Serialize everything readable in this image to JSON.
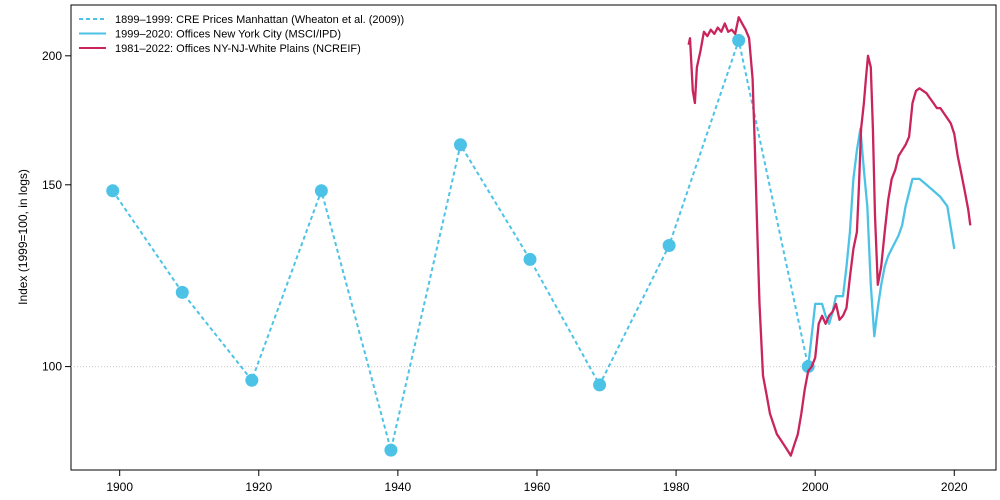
{
  "chart_data": {
    "type": "line",
    "title": "",
    "xlabel": "",
    "ylabel": "Index (1999=100, in logs)",
    "y_scale": "log",
    "xlim": [
      1893,
      2026
    ],
    "ylim": [
      79.4,
      224
    ],
    "x_ticks": [
      1900,
      1920,
      1940,
      1960,
      1980,
      2000,
      2020
    ],
    "y_ticks": [
      100,
      150,
      200
    ],
    "reference_line": 100,
    "legend_position": "top-left",
    "grid": false,
    "series": [
      {
        "name": "1899–1999: CRE Prices Manhattan (Wheaton et al. (2009))",
        "color": "#4CC3E6",
        "style": "dotted",
        "markers": true,
        "x": [
          1899,
          1909,
          1919,
          1929,
          1939,
          1949,
          1959,
          1969,
          1979,
          1989,
          1999
        ],
        "y": [
          148,
          118,
          97,
          148,
          83,
          164,
          127,
          96,
          131,
          207,
          100
        ]
      },
      {
        "name": "1999–2020: Offices New York City (MSCI/IPD)",
        "color": "#4CC3E6",
        "style": "solid",
        "markers": false,
        "x": [
          1999,
          2000,
          2001,
          2001.5,
          2002,
          2002.5,
          2003,
          2003.5,
          2004,
          2004.5,
          2005,
          2005.5,
          2006,
          2006.5,
          2007,
          2007.5,
          2008,
          2008.5,
          2009,
          2009.5,
          2010,
          2010.5,
          2011,
          2011.5,
          2012,
          2012.5,
          2013,
          2014,
          2015,
          2016,
          2017,
          2018,
          2019,
          2020
        ],
        "y": [
          100,
          115,
          115,
          112,
          110,
          113,
          117,
          117,
          117,
          125,
          135,
          152,
          162,
          170,
          155,
          143,
          120,
          107,
          114,
          120,
          125,
          128,
          130,
          132,
          134,
          137,
          143,
          152,
          152,
          150,
          148,
          146,
          143,
          130
        ]
      },
      {
        "name": "1981–2022: Offices NY-NJ-White Plains (NCREIF)",
        "color": "#C9245C",
        "style": "solid",
        "markers": false,
        "x": [
          1981.8,
          1982,
          1982.4,
          1982.7,
          1983,
          1983.5,
          1984,
          1984.5,
          1985,
          1985.5,
          1986,
          1986.5,
          1987,
          1987.5,
          1988,
          1988.5,
          1989,
          1989.5,
          1990,
          1990.5,
          1991,
          1991.3,
          1991.6,
          1992,
          1992.5,
          1993,
          1993.5,
          1994,
          1994.5,
          1995,
          1995.5,
          1996,
          1996.5,
          1997,
          1997.5,
          1998,
          1998.5,
          1999,
          1999.5,
          2000,
          2000.5,
          2001,
          2001.5,
          2002,
          2002.5,
          2003,
          2003.5,
          2004,
          2004.5,
          2005,
          2005.5,
          2006,
          2006.3,
          2006.6,
          2007,
          2007.3,
          2007.6,
          2008,
          2008.3,
          2008.6,
          2009,
          2009.5,
          2010,
          2010.5,
          2011,
          2011.5,
          2012,
          2012.5,
          2013,
          2013.5,
          2014,
          2014.5,
          2015,
          2015.5,
          2016,
          2016.5,
          2017,
          2017.5,
          2018,
          2018.5,
          2019,
          2019.5,
          2020,
          2020.5,
          2021,
          2021.5,
          2022,
          2022.3
        ],
        "y": [
          205,
          208,
          185,
          180,
          195,
          202,
          211,
          209,
          212,
          210,
          213,
          211,
          215,
          211,
          212,
          210,
          218,
          215,
          212,
          208,
          190,
          165,
          140,
          115,
          98,
          94,
          90,
          88,
          86,
          85,
          84,
          83,
          82,
          84,
          86,
          90,
          95,
          99,
          100,
          102,
          110,
          112,
          110,
          112,
          113,
          115,
          111,
          112,
          114,
          122,
          130,
          135,
          150,
          170,
          180,
          190,
          200,
          195,
          170,
          140,
          120,
          125,
          135,
          145,
          152,
          155,
          160,
          162,
          164,
          167,
          180,
          185,
          186,
          185,
          184,
          182,
          180,
          178,
          178,
          176,
          174,
          172,
          168,
          160,
          154,
          148,
          142,
          137
        ]
      }
    ]
  }
}
